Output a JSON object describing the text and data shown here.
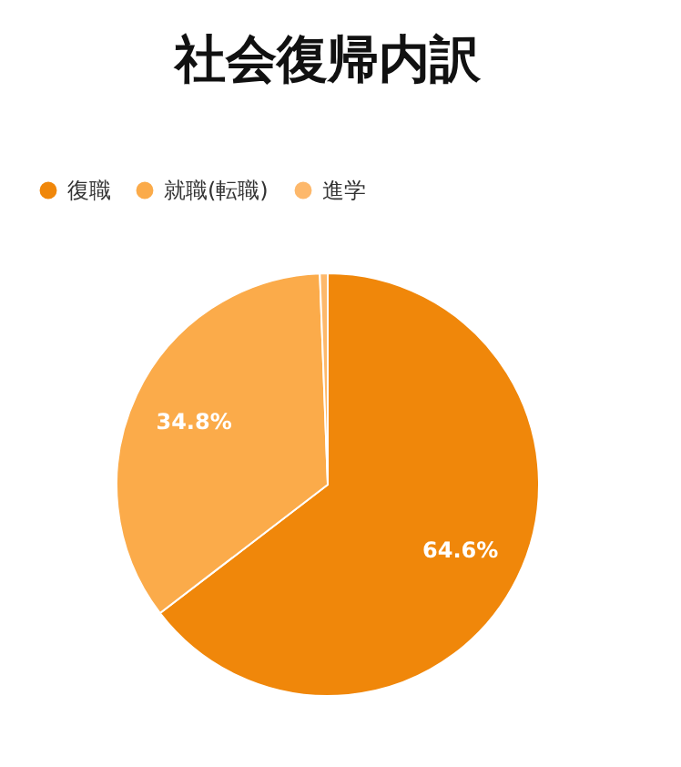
{
  "chart_data": {
    "type": "pie",
    "title": "社会復帰内訳",
    "categories": [
      "復職",
      "就職(転職)",
      "進学"
    ],
    "values": [
      64.6,
      34.8,
      0.6
    ],
    "colors": [
      "#f0870a",
      "#fbab4a",
      "#fdb86b"
    ],
    "value_labels": [
      "64.6%",
      "34.8%",
      null
    ],
    "legend": "top"
  }
}
